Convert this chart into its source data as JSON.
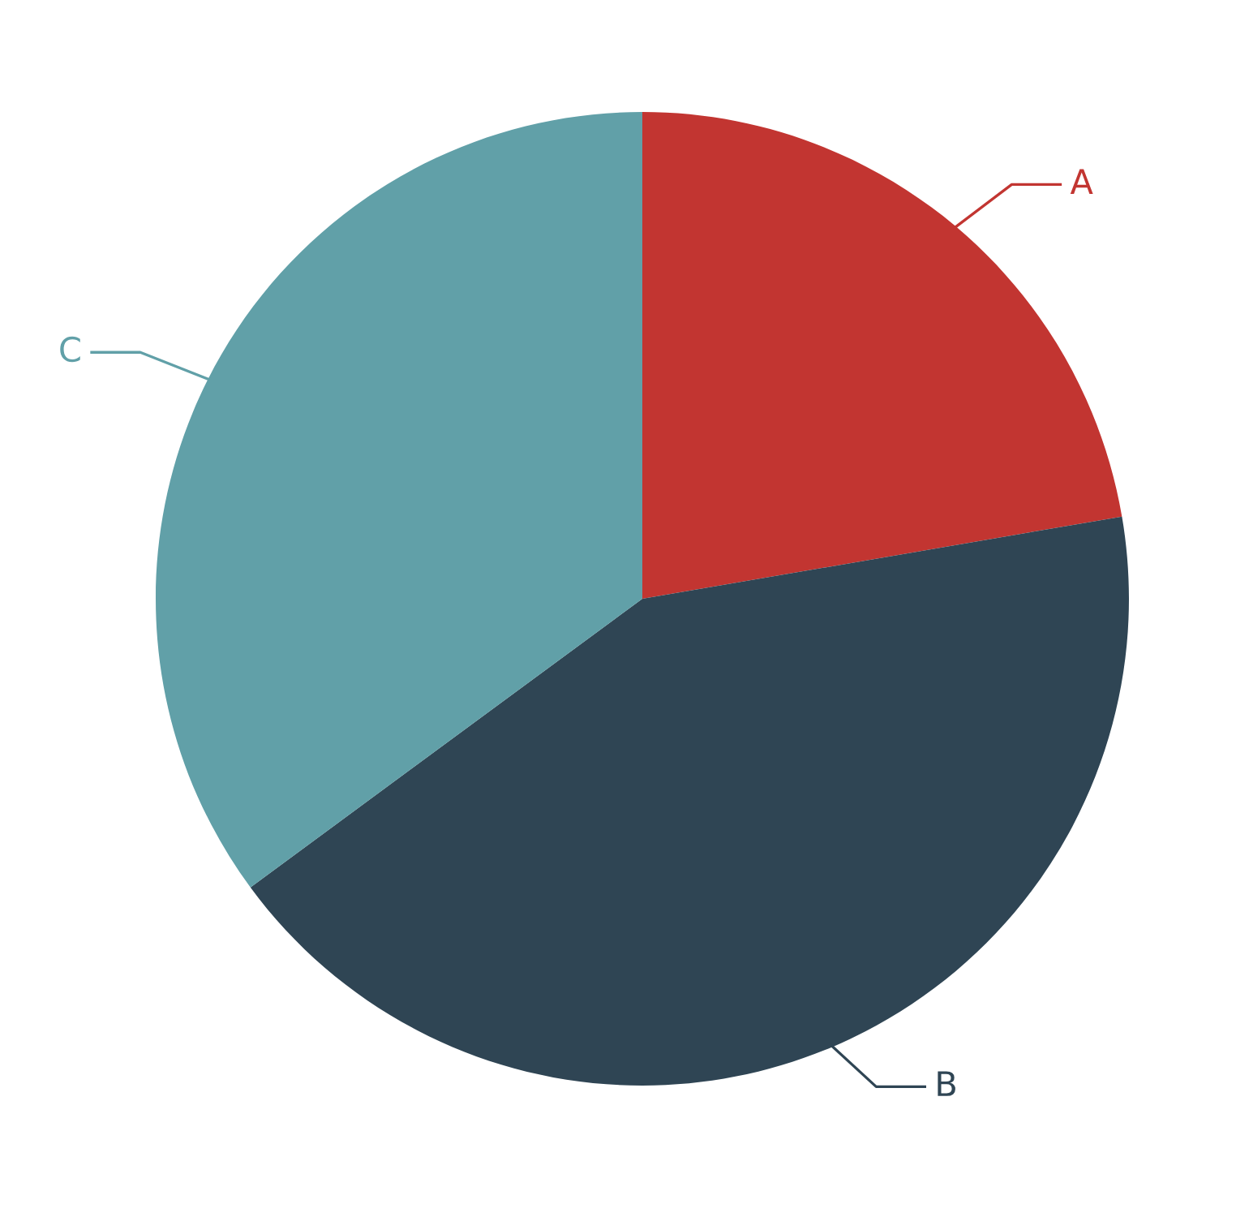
{
  "chart_data": {
    "type": "pie",
    "categories": [
      "A",
      "B",
      "C"
    ],
    "values": [
      22.3,
      42.6,
      35.1
    ],
    "colors": [
      "#c23531",
      "#2f4554",
      "#61a0a8"
    ]
  }
}
